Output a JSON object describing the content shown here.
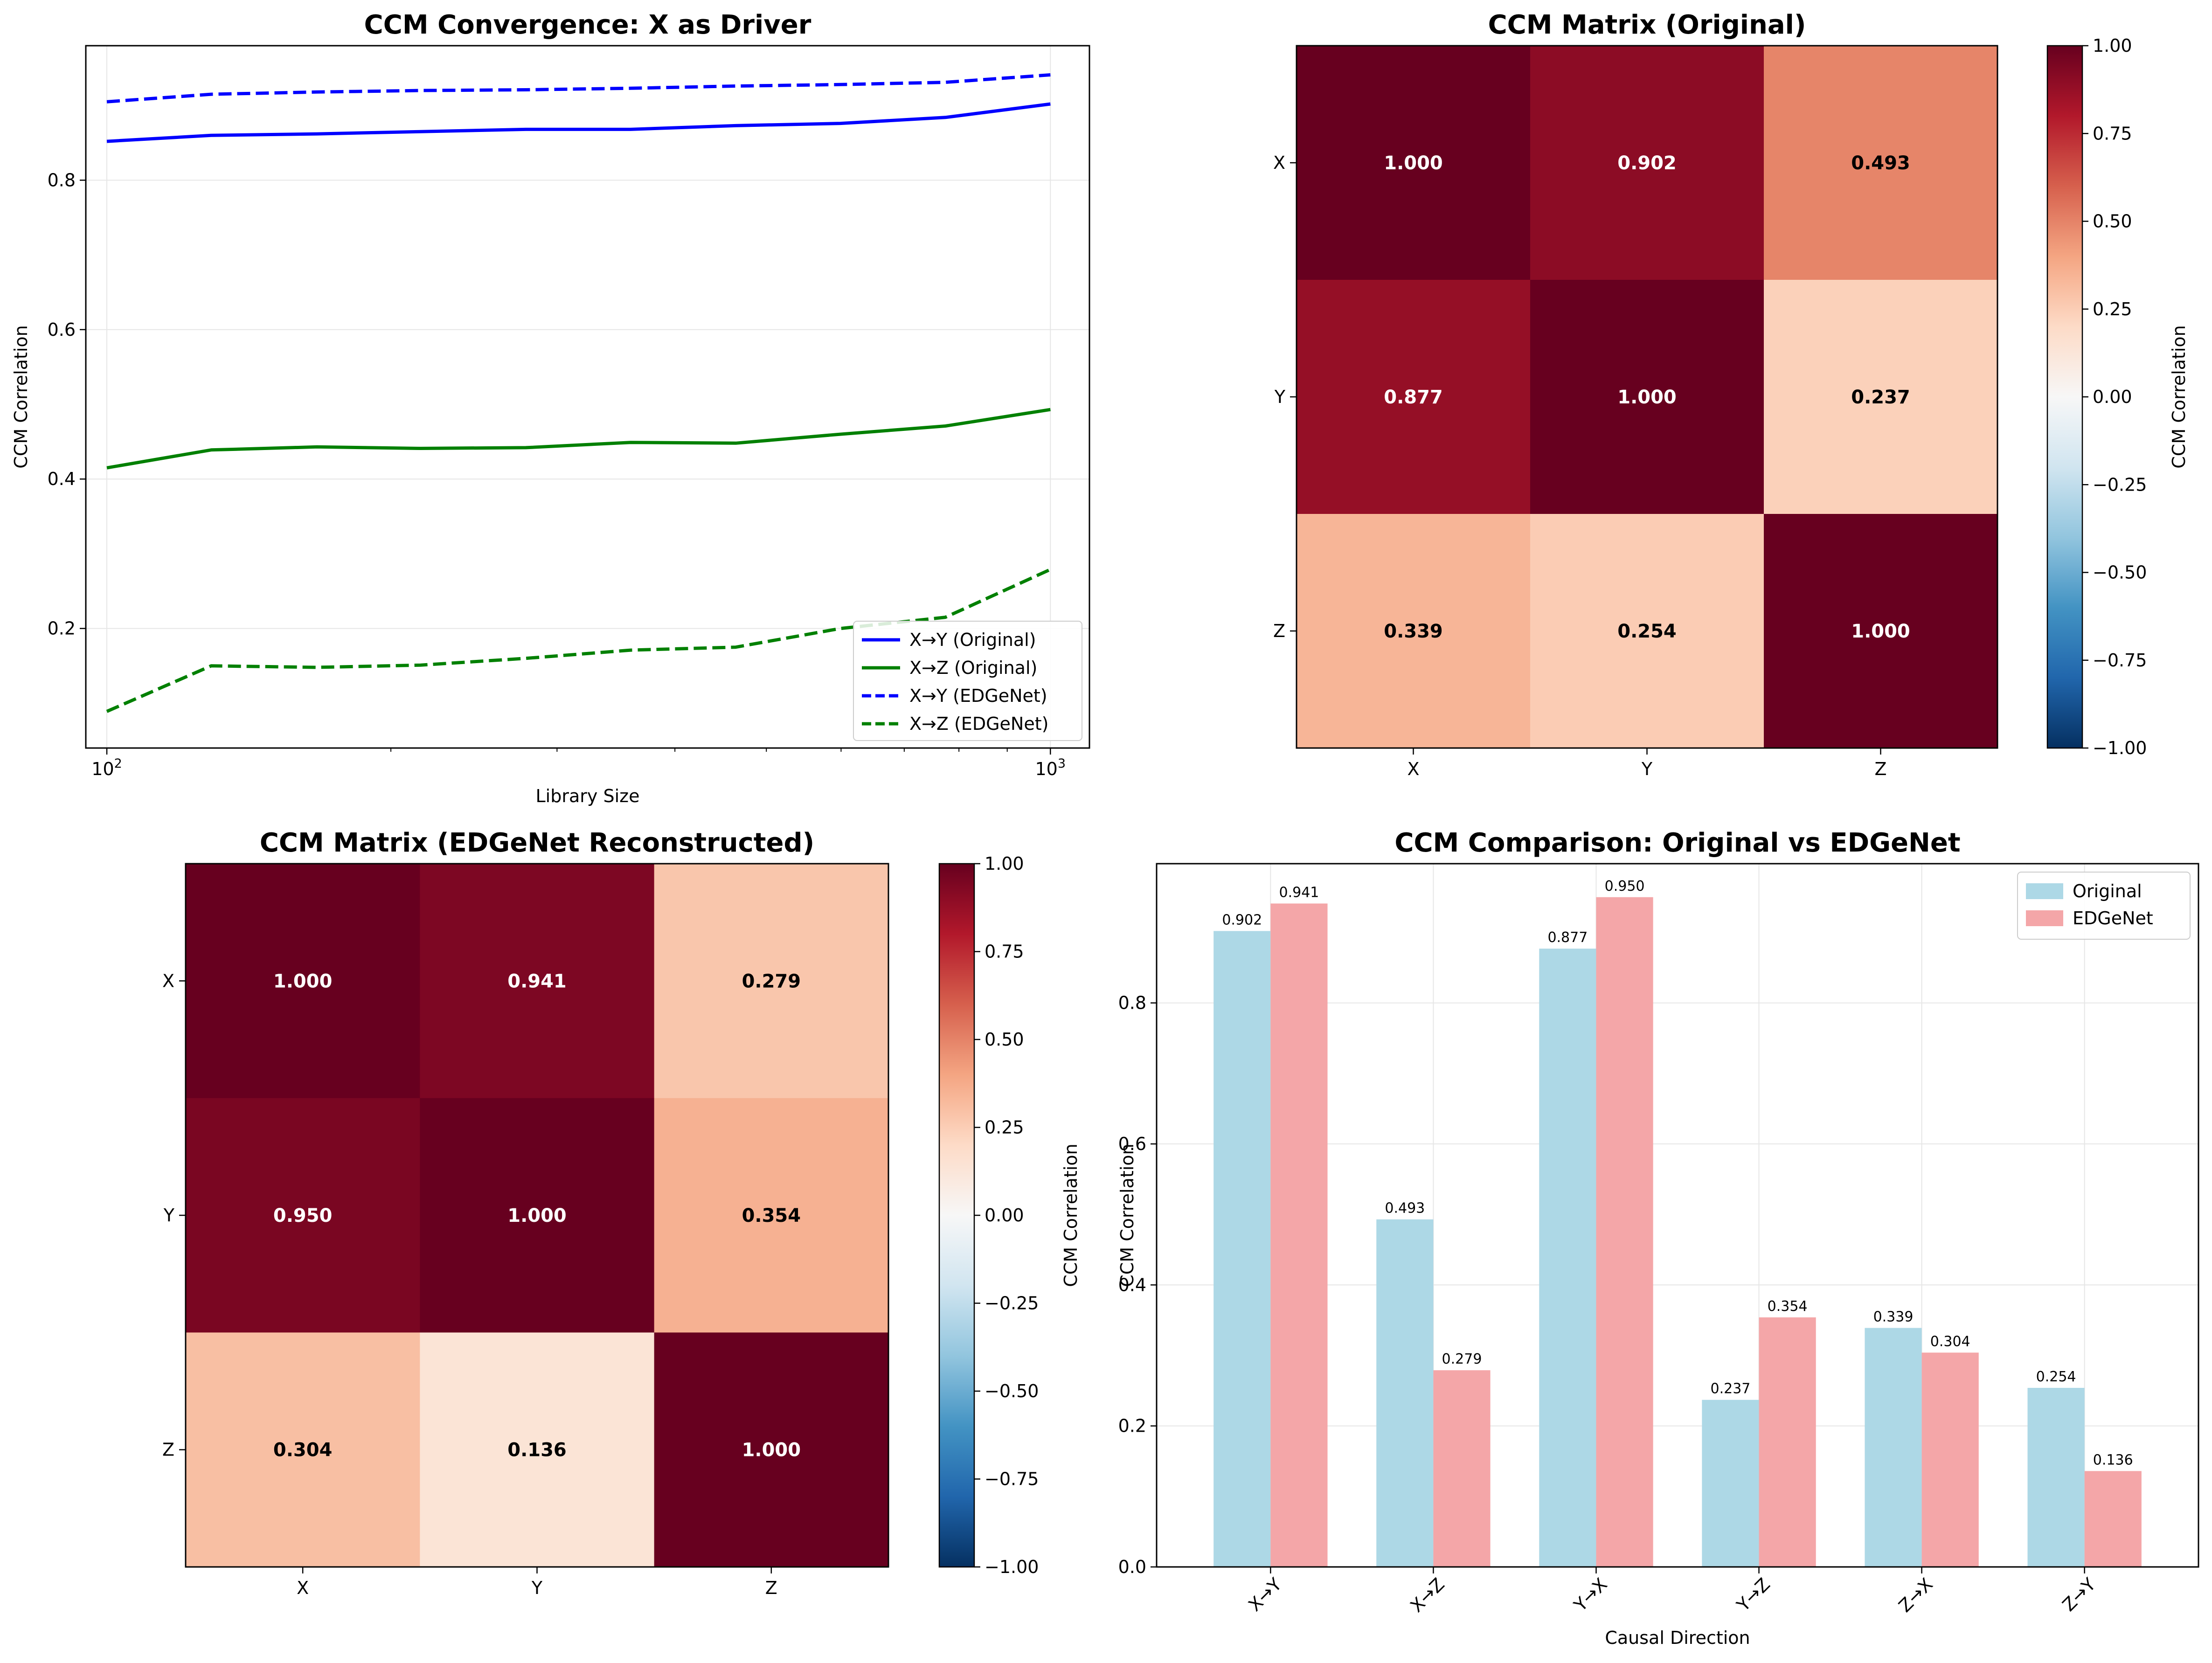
{
  "figure": {
    "background": "#ffffff"
  },
  "chart_data": [
    {
      "type": "line",
      "title": "CCM Convergence: X as Driver",
      "xlabel": "Library Size",
      "ylabel": "CCM Correlation",
      "xscale": "log",
      "xlim": [
        95,
        1100
      ],
      "ylim": [
        0.04,
        0.98
      ],
      "xticks": [
        100,
        1000
      ],
      "xtick_labels": [
        {
          "base": "10",
          "exp": "2"
        },
        {
          "base": "10",
          "exp": "3"
        }
      ],
      "yticks": [
        0.2,
        0.4,
        0.6,
        0.8
      ],
      "ytick_labels": [
        "0.2",
        "0.4",
        "0.6",
        "0.8"
      ],
      "grid": true,
      "legend": "lower right",
      "x": [
        100,
        129,
        167,
        215,
        278,
        359,
        464,
        599,
        774,
        1000
      ],
      "series": [
        {
          "name": "X→Y (Original)",
          "color": "#0000ff",
          "dash": "solid",
          "values": [
            0.852,
            0.86,
            0.862,
            0.865,
            0.868,
            0.868,
            0.873,
            0.876,
            0.884,
            0.902
          ]
        },
        {
          "name": "X→Z (Original)",
          "color": "#008000",
          "dash": "solid",
          "values": [
            0.415,
            0.439,
            0.443,
            0.441,
            0.442,
            0.449,
            0.448,
            0.46,
            0.471,
            0.493
          ]
        },
        {
          "name": "X→Y (EDGeNet)",
          "color": "#0000ff",
          "dash": "dashed",
          "values": [
            0.905,
            0.915,
            0.918,
            0.92,
            0.921,
            0.923,
            0.926,
            0.928,
            0.931,
            0.941
          ]
        },
        {
          "name": "X→Z (EDGeNet)",
          "color": "#008000",
          "dash": "dashed",
          "values": [
            0.089,
            0.15,
            0.148,
            0.151,
            0.16,
            0.171,
            0.175,
            0.2,
            0.215,
            0.279
          ]
        }
      ]
    },
    {
      "type": "heatmap",
      "title": "CCM Matrix (Original)",
      "row_labels": [
        "X",
        "Y",
        "Z"
      ],
      "col_labels": [
        "X",
        "Y",
        "Z"
      ],
      "values": [
        [
          1.0,
          0.902,
          0.493
        ],
        [
          0.877,
          1.0,
          0.237
        ],
        [
          0.339,
          0.254,
          1.0
        ]
      ],
      "value_labels": [
        [
          "1.000",
          "0.902",
          "0.493"
        ],
        [
          "0.877",
          "1.000",
          "0.237"
        ],
        [
          "0.339",
          "0.254",
          "1.000"
        ]
      ],
      "colormap": "RdBu_r",
      "vmin": -1,
      "vmax": 1,
      "colorbar_label": "CCM Correlation",
      "colorbar_ticks": [
        1.0,
        0.75,
        0.5,
        0.25,
        0.0,
        -0.25,
        -0.5,
        -0.75,
        -1.0
      ],
      "colorbar_tick_labels": [
        "1.00",
        "0.75",
        "0.50",
        "0.25",
        "0.00",
        "−0.25",
        "−0.50",
        "−0.75",
        "−1.00"
      ]
    },
    {
      "type": "heatmap",
      "title": "CCM Matrix (EDGeNet Reconstructed)",
      "row_labels": [
        "X",
        "Y",
        "Z"
      ],
      "col_labels": [
        "X",
        "Y",
        "Z"
      ],
      "values": [
        [
          1.0,
          0.941,
          0.279
        ],
        [
          0.95,
          1.0,
          0.354
        ],
        [
          0.304,
          0.136,
          1.0
        ]
      ],
      "value_labels": [
        [
          "1.000",
          "0.941",
          "0.279"
        ],
        [
          "0.950",
          "1.000",
          "0.354"
        ],
        [
          "0.304",
          "0.136",
          "1.000"
        ]
      ],
      "colormap": "RdBu_r",
      "vmin": -1,
      "vmax": 1,
      "colorbar_label": "CCM Correlation",
      "colorbar_ticks": [
        1.0,
        0.75,
        0.5,
        0.25,
        0.0,
        -0.25,
        -0.5,
        -0.75,
        -1.0
      ],
      "colorbar_tick_labels": [
        "1.00",
        "0.75",
        "0.50",
        "0.25",
        "0.00",
        "−0.25",
        "−0.50",
        "−0.75",
        "−1.00"
      ]
    },
    {
      "type": "bar",
      "title": "CCM Comparison: Original vs EDGeNet",
      "xlabel": "Causal Direction",
      "ylabel": "CCM Correlation",
      "categories": [
        "X→Y",
        "X→Z",
        "Y→X",
        "Y→Z",
        "Z→X",
        "Z→Y"
      ],
      "ylim": [
        0,
        0.9975
      ],
      "yticks": [
        0.0,
        0.2,
        0.4,
        0.6,
        0.8
      ],
      "ytick_labels": [
        "0.0",
        "0.2",
        "0.4",
        "0.6",
        "0.8"
      ],
      "grid": true,
      "legend": "upper right",
      "series": [
        {
          "name": "Original",
          "color": "#add8e6",
          "values": [
            0.902,
            0.493,
            0.877,
            0.237,
            0.339,
            0.254
          ],
          "value_labels": [
            "0.902",
            "0.493",
            "0.877",
            "0.237",
            "0.339",
            "0.254"
          ]
        },
        {
          "name": "EDGeNet",
          "color": "#f4a6a8",
          "values": [
            0.941,
            0.279,
            0.95,
            0.354,
            0.304,
            0.136
          ],
          "value_labels": [
            "0.941",
            "0.279",
            "0.950",
            "0.354",
            "0.304",
            "0.136"
          ]
        }
      ]
    }
  ]
}
